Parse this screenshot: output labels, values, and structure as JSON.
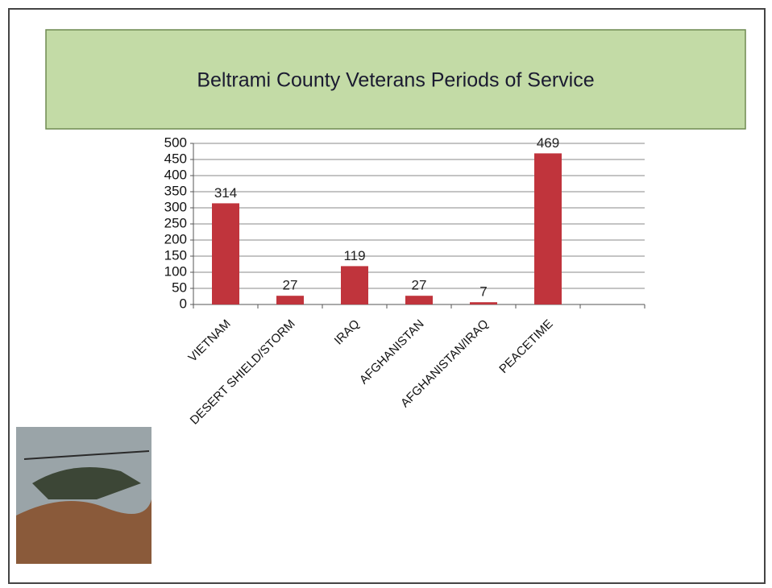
{
  "chart_data": {
    "type": "bar",
    "title": "Beltrami County Veterans Periods of Service",
    "categories": [
      "VIETNAM",
      "DESERT SHIELD/STORM",
      "IRAQ",
      "AFGHANISTAN",
      "AFGHANISTAN/IRAQ",
      "PEACETIME",
      null
    ],
    "values": [
      314,
      27,
      119,
      27,
      7,
      469,
      null
    ],
    "color": "#c0343c",
    "ylim": [
      0,
      500
    ],
    "yticks": [
      0,
      50,
      100,
      150,
      200,
      250,
      300,
      350,
      400,
      450,
      500
    ],
    "grid": true
  }
}
